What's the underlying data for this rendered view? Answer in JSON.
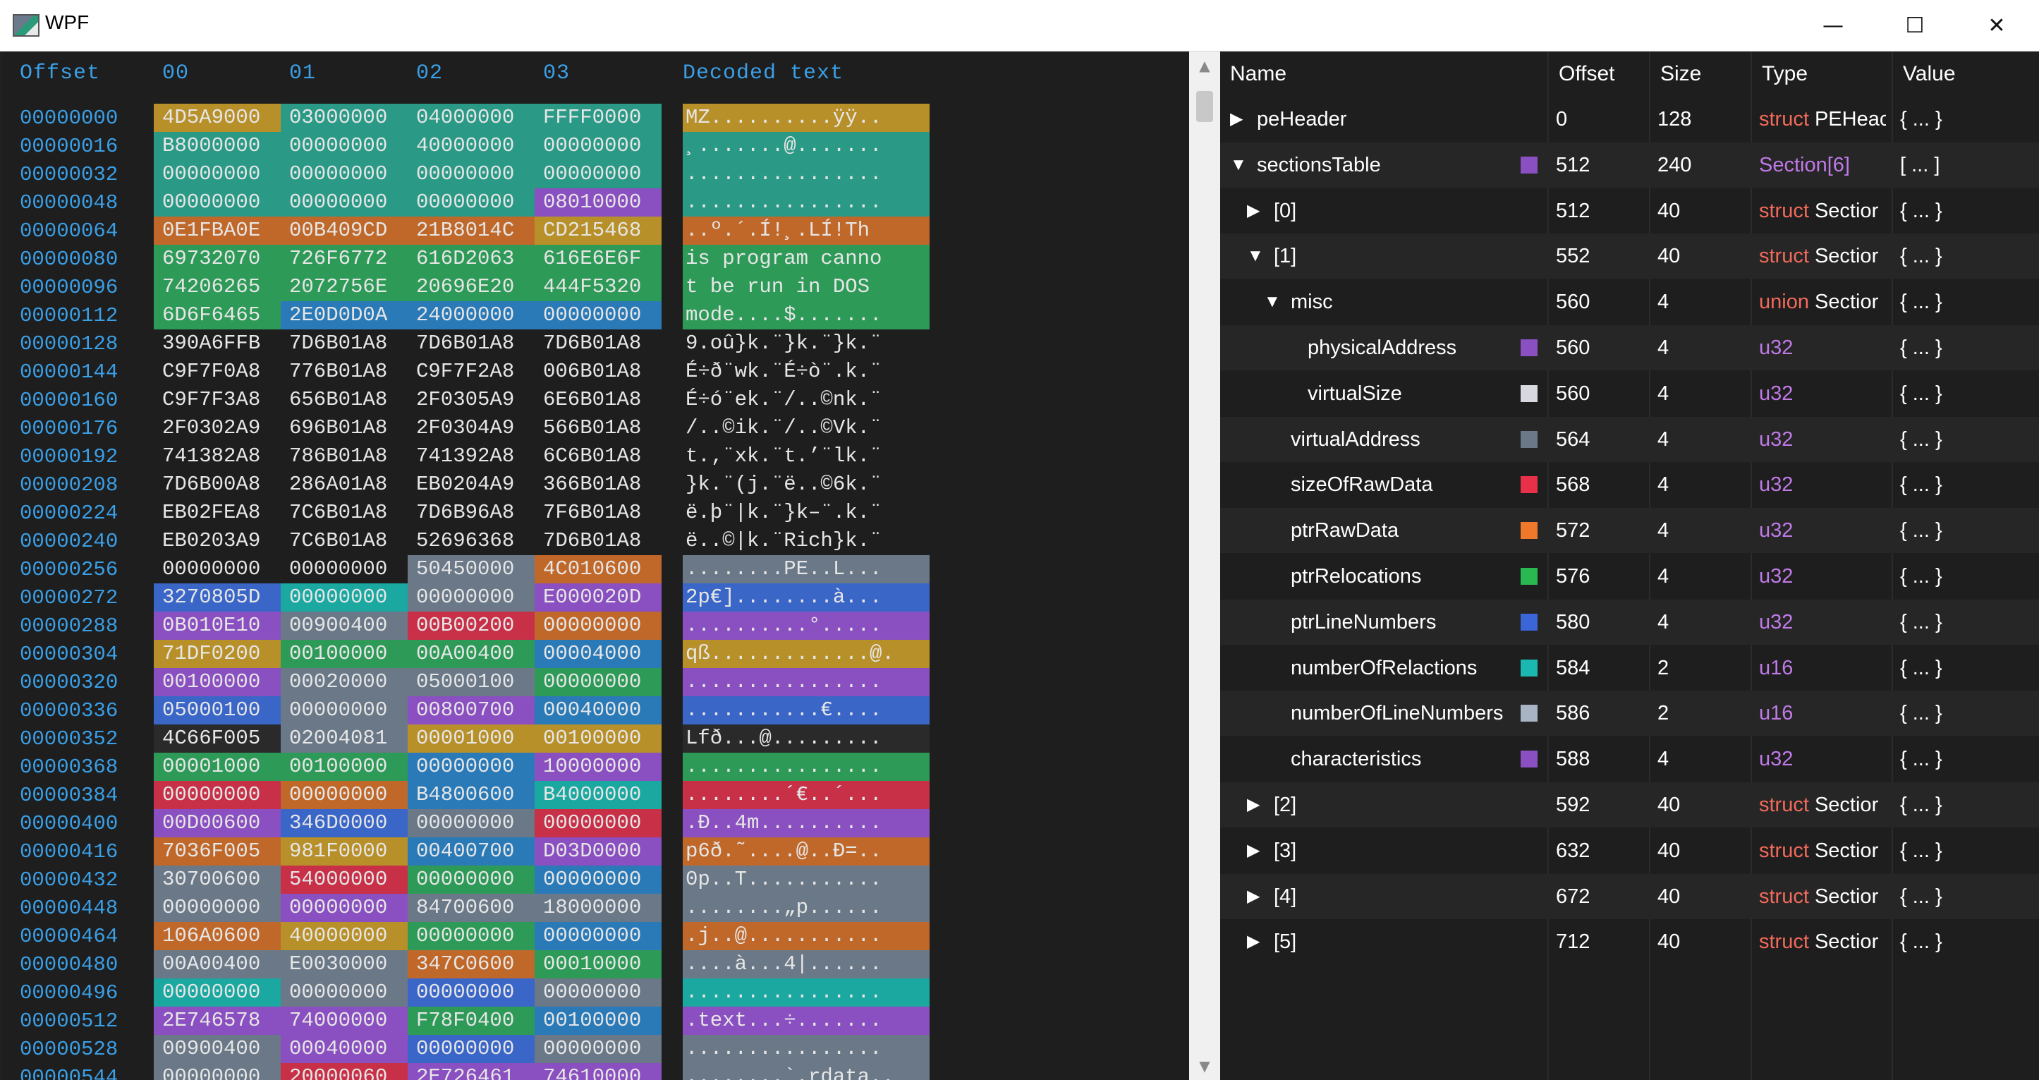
{
  "window": {
    "title": "WPF",
    "minimize": "—",
    "maximize": "☐",
    "close": "✕"
  },
  "hex_headers": {
    "offset": "Offset",
    "c0": "00",
    "c1": "01",
    "c2": "02",
    "c3": "03",
    "decoded": "Decoded text"
  },
  "hex_rows": [
    {
      "offset": "00000000",
      "cells": [
        "4D5A9000",
        "03000000",
        "04000000",
        "FFFF0000"
      ],
      "decoded": "MZ..........ÿÿ..",
      "colors": [
        "#b8902a",
        "#2a9a86",
        "#2a9a86",
        "#2a9a86"
      ]
    },
    {
      "offset": "00000016",
      "cells": [
        "B8000000",
        "00000000",
        "40000000",
        "00000000"
      ],
      "decoded": "¸.......@.......",
      "colors": [
        "#2a9a86",
        "#2a9a86",
        "#2a9a86",
        "#2a9a86"
      ]
    },
    {
      "offset": "00000032",
      "cells": [
        "00000000",
        "00000000",
        "00000000",
        "00000000"
      ],
      "decoded": "................",
      "colors": [
        "#2a9a86",
        "#2a9a86",
        "#2a9a86",
        "#2a9a86"
      ]
    },
    {
      "offset": "00000048",
      "cells": [
        "00000000",
        "00000000",
        "00000000",
        "08010000"
      ],
      "decoded": "................",
      "colors": [
        "#2a9a86",
        "#2a9a86",
        "#2a9a86",
        "#8a4fc0"
      ]
    },
    {
      "offset": "00000064",
      "cells": [
        "0E1FBA0E",
        "00B409CD",
        "21B8014C",
        "CD215468"
      ],
      "decoded": "..º.´.Í!¸.LÍ!Th",
      "colors": [
        "#c0682a",
        "#c0682a",
        "#c0682a",
        "#b8902a"
      ]
    },
    {
      "offset": "00000080",
      "cells": [
        "69732070",
        "726F6772",
        "616D2063",
        "616E6E6F"
      ],
      "decoded": "is program canno",
      "colors": [
        "#2e9a58",
        "#2e9a58",
        "#2e9a58",
        "#2e9a58"
      ]
    },
    {
      "offset": "00000096",
      "cells": [
        "74206265",
        "2072756E",
        "20696E20",
        "444F5320"
      ],
      "decoded": "t be run in DOS ",
      "colors": [
        "#2e9a58",
        "#2e9a58",
        "#2e9a58",
        "#2e9a58"
      ]
    },
    {
      "offset": "00000112",
      "cells": [
        "6D6F6465",
        "2E0D0D0A",
        "24000000",
        "00000000"
      ],
      "decoded": "mode....$.......",
      "colors": [
        "#2e9a58",
        "#2a7ab8",
        "#2a7ab8",
        "#2a7ab8"
      ]
    },
    {
      "offset": "00000128",
      "cells": [
        "390A6FFB",
        "7D6B01A8",
        "7D6B01A8",
        "7D6B01A8"
      ],
      "decoded": "9.oû}k.¨}k.¨}k.¨",
      "colors": [
        "",
        "",
        "",
        ""
      ]
    },
    {
      "offset": "00000144",
      "cells": [
        "C9F7F0A8",
        "776B01A8",
        "C9F7F2A8",
        "006B01A8"
      ],
      "decoded": "É÷ð¨wk.¨É÷ò¨.k.¨",
      "colors": [
        "",
        "",
        "",
        ""
      ]
    },
    {
      "offset": "00000160",
      "cells": [
        "C9F7F3A8",
        "656B01A8",
        "2F0305A9",
        "6E6B01A8"
      ],
      "decoded": "É÷ó¨ek.¨/..©nk.¨",
      "colors": [
        "",
        "",
        "",
        ""
      ]
    },
    {
      "offset": "00000176",
      "cells": [
        "2F0302A9",
        "696B01A8",
        "2F0304A9",
        "566B01A8"
      ],
      "decoded": "/..©ik.¨/..©Vk.¨",
      "colors": [
        "",
        "",
        "",
        ""
      ]
    },
    {
      "offset": "00000192",
      "cells": [
        "741382A8",
        "786B01A8",
        "741392A8",
        "6C6B01A8"
      ],
      "decoded": "t.‚¨xk.¨t.’¨lk.¨",
      "colors": [
        "",
        "",
        "",
        ""
      ]
    },
    {
      "offset": "00000208",
      "cells": [
        "7D6B00A8",
        "286A01A8",
        "EB0204A9",
        "366B01A8"
      ],
      "decoded": "}k.¨(j.¨ë..©6k.¨",
      "colors": [
        "",
        "",
        "",
        ""
      ]
    },
    {
      "offset": "00000224",
      "cells": [
        "EB02FEA8",
        "7C6B01A8",
        "7D6B96A8",
        "7F6B01A8"
      ],
      "decoded": "ë.þ¨|k.¨}k–¨.k.¨",
      "colors": [
        "",
        "",
        "",
        ""
      ]
    },
    {
      "offset": "00000240",
      "cells": [
        "EB0203A9",
        "7C6B01A8",
        "52696368",
        "7D6B01A8"
      ],
      "decoded": "ë..©|k.¨Rich}k.¨",
      "colors": [
        "",
        "",
        "",
        ""
      ]
    },
    {
      "offset": "00000256",
      "cells": [
        "00000000",
        "00000000",
        "50450000",
        "4C010600"
      ],
      "decoded": "........PE..L...",
      "colors": [
        "",
        "",
        "#6a7888",
        "#c0682a"
      ]
    },
    {
      "offset": "00000272",
      "cells": [
        "3270805D",
        "00000000",
        "00000000",
        "E000020D"
      ],
      "decoded": "2p€]........à...",
      "colors": [
        "#3a66c8",
        "#1aa8a0",
        "#6a7888",
        "#8a4fc0"
      ]
    },
    {
      "offset": "00000288",
      "cells": [
        "0B010E10",
        "00900400",
        "00B00200",
        "00000000"
      ],
      "decoded": "..........°.....",
      "colors": [
        "#8a4fc0",
        "#6a7888",
        "#c83048",
        "#c0682a"
      ]
    },
    {
      "offset": "00000304",
      "cells": [
        "71DF0200",
        "00100000",
        "00A00400",
        "00004000"
      ],
      "decoded": "qß.............@.",
      "colors": [
        "#b8902a",
        "#2e9a58",
        "#2e9a58",
        "#2a7ab8"
      ]
    },
    {
      "offset": "00000320",
      "cells": [
        "00100000",
        "00020000",
        "05000100",
        "00000000"
      ],
      "decoded": "................",
      "colors": [
        "#8a4fc0",
        "#6a7888",
        "#6a7888",
        "#2e9a58"
      ]
    },
    {
      "offset": "00000336",
      "cells": [
        "05000100",
        "00000000",
        "00800700",
        "00040000"
      ],
      "decoded": "...........€....",
      "colors": [
        "#3a66c8",
        "#6a7888",
        "#8a4fc0",
        "#2a7ab8"
      ]
    },
    {
      "offset": "00000352",
      "cells": [
        "4C66F005",
        "02004081",
        "00001000",
        "00100000"
      ],
      "decoded": "Lfð...@.........",
      "colors": [
        "#2a2a2a",
        "#6a7888",
        "#b8902a",
        "#b8902a"
      ]
    },
    {
      "offset": "00000368",
      "cells": [
        "00001000",
        "00100000",
        "00000000",
        "10000000"
      ],
      "decoded": "................",
      "colors": [
        "#2e9a58",
        "#2e9a58",
        "#2a7ab8",
        "#8a4fc0"
      ]
    },
    {
      "offset": "00000384",
      "cells": [
        "00000000",
        "00000000",
        "B4800600",
        "B4000000"
      ],
      "decoded": "........´€..´...",
      "colors": [
        "#c83048",
        "#c0682a",
        "#2a7ab8",
        "#1aa8a0"
      ]
    },
    {
      "offset": "00000400",
      "cells": [
        "00D00600",
        "346D0000",
        "00000000",
        "00000000"
      ],
      "decoded": ".Ð..4m..........",
      "colors": [
        "#8a4fc0",
        "#3a66c8",
        "#6a7888",
        "#c83048"
      ]
    },
    {
      "offset": "00000416",
      "cells": [
        "7036F005",
        "981F0000",
        "00400700",
        "D03D0000"
      ],
      "decoded": "p6ð.˜....@..Ð=..",
      "colors": [
        "#c0682a",
        "#b8902a",
        "#2a7ab8",
        "#8a4fc0"
      ]
    },
    {
      "offset": "00000432",
      "cells": [
        "30700600",
        "54000000",
        "00000000",
        "00000000"
      ],
      "decoded": "0p..T...........",
      "colors": [
        "#6a7888",
        "#c83048",
        "#2e9a58",
        "#2a7ab8"
      ]
    },
    {
      "offset": "00000448",
      "cells": [
        "00000000",
        "00000000",
        "84700600",
        "18000000"
      ],
      "decoded": "........„p......",
      "colors": [
        "#6a7888",
        "#8a4fc0",
        "#6a7888",
        "#6a7888"
      ]
    },
    {
      "offset": "00000464",
      "cells": [
        "106A0600",
        "40000000",
        "00000000",
        "00000000"
      ],
      "decoded": ".j..@...........",
      "colors": [
        "#c0682a",
        "#b8902a",
        "#2e9a58",
        "#2a7ab8"
      ]
    },
    {
      "offset": "00000480",
      "cells": [
        "00A00400",
        "E0030000",
        "347C0600",
        "00010000"
      ],
      "decoded": "....à...4|......",
      "colors": [
        "#6a7888",
        "#6a7888",
        "#c0682a",
        "#2e9a58"
      ]
    },
    {
      "offset": "00000496",
      "cells": [
        "00000000",
        "00000000",
        "00000000",
        "00000000"
      ],
      "decoded": "................",
      "colors": [
        "#1aa8a0",
        "#6a7888",
        "#3a66c8",
        "#6a7888"
      ]
    },
    {
      "offset": "00000512",
      "cells": [
        "2E746578",
        "74000000",
        "F78F0400",
        "00100000"
      ],
      "decoded": ".text...÷.......",
      "colors": [
        "#8a4fc0",
        "#8a4fc0",
        "#2e9a58",
        "#2a7ab8"
      ]
    },
    {
      "offset": "00000528",
      "cells": [
        "00900400",
        "00040000",
        "00000000",
        "00000000"
      ],
      "decoded": "................",
      "colors": [
        "#6a7888",
        "#8a4fc0",
        "#3a66c8",
        "#6a7888"
      ]
    },
    {
      "offset": "00000544",
      "cells": [
        "00000000",
        "20000060",
        "2E726461",
        "74610000"
      ],
      "decoded": "........`.rdata..",
      "colors": [
        "#6a7888",
        "#c83048",
        "#8a4fc0",
        "#8a4fc0"
      ]
    }
  ],
  "tree_headers": {
    "name": "Name",
    "offset": "Offset",
    "size": "Size",
    "type": "Type",
    "value": "Value"
  },
  "tree_rows": [
    {
      "toggle": "▶",
      "indent": 0,
      "name": "peHeader",
      "swatch": "",
      "offset": "0",
      "size": "128",
      "kw": "struct",
      "type": " PEHeac",
      "typestyle": "kw",
      "value": "{ ... }"
    },
    {
      "toggle": "▼",
      "indent": 0,
      "name": "sectionsTable",
      "swatch": "#8a4fc0",
      "offset": "512",
      "size": "240",
      "kw": "",
      "type": "Section[6]",
      "typestyle": "sec",
      "value": "[ ... ]"
    },
    {
      "toggle": "▶",
      "indent": 1,
      "name": "[0]",
      "swatch": "",
      "offset": "512",
      "size": "40",
      "kw": "struct",
      "type": " Sectior",
      "typestyle": "kw",
      "value": "{ ... }"
    },
    {
      "toggle": "▼",
      "indent": 1,
      "name": "[1]",
      "swatch": "",
      "offset": "552",
      "size": "40",
      "kw": "struct",
      "type": " Sectior",
      "typestyle": "kw",
      "value": "{ ... }"
    },
    {
      "toggle": "▼",
      "indent": 2,
      "name": "misc",
      "swatch": "",
      "offset": "560",
      "size": "4",
      "kw": "union",
      "type": " Sectior",
      "typestyle": "kw",
      "value": "{ ... }"
    },
    {
      "toggle": "",
      "indent": 3,
      "name": "physicalAddress",
      "swatch": "#8a4fc0",
      "offset": "560",
      "size": "4",
      "kw": "",
      "type": "u32",
      "typestyle": "u",
      "value": "{ ... }"
    },
    {
      "toggle": "",
      "indent": 3,
      "name": "virtualSize",
      "swatch": "#d8d8e0",
      "offset": "560",
      "size": "4",
      "kw": "",
      "type": "u32",
      "typestyle": "u",
      "value": "{ ... }"
    },
    {
      "toggle": "",
      "indent": 2,
      "name": "virtualAddress",
      "swatch": "#6a7888",
      "offset": "564",
      "size": "4",
      "kw": "",
      "type": "u32",
      "typestyle": "u",
      "value": "{ ... }"
    },
    {
      "toggle": "",
      "indent": 2,
      "name": "sizeOfRawData",
      "swatch": "#e83048",
      "offset": "568",
      "size": "4",
      "kw": "",
      "type": "u32",
      "typestyle": "u",
      "value": "{ ... }"
    },
    {
      "toggle": "",
      "indent": 2,
      "name": "ptrRawData",
      "swatch": "#f0782a",
      "offset": "572",
      "size": "4",
      "kw": "",
      "type": "u32",
      "typestyle": "u",
      "value": "{ ... }"
    },
    {
      "toggle": "",
      "indent": 2,
      "name": "ptrRelocations",
      "swatch": "#2ab850",
      "offset": "576",
      "size": "4",
      "kw": "",
      "type": "u32",
      "typestyle": "u",
      "value": "{ ... }"
    },
    {
      "toggle": "",
      "indent": 2,
      "name": "ptrLineNumbers",
      "swatch": "#3a66d8",
      "offset": "580",
      "size": "4",
      "kw": "",
      "type": "u32",
      "typestyle": "u",
      "value": "{ ... }"
    },
    {
      "toggle": "",
      "indent": 2,
      "name": "numberOfRelactions",
      "swatch": "#1ab8b0",
      "offset": "584",
      "size": "2",
      "kw": "",
      "type": "u16",
      "typestyle": "u",
      "value": "{ ... }"
    },
    {
      "toggle": "",
      "indent": 2,
      "name": "numberOfLineNumbers",
      "swatch": "#a8b4c4",
      "offset": "586",
      "size": "2",
      "kw": "",
      "type": "u16",
      "typestyle": "u",
      "value": "{ ... }"
    },
    {
      "toggle": "",
      "indent": 2,
      "name": "characteristics",
      "swatch": "#8a4fc0",
      "offset": "588",
      "size": "4",
      "kw": "",
      "type": "u32",
      "typestyle": "u",
      "value": "{ ... }"
    },
    {
      "toggle": "▶",
      "indent": 1,
      "name": "[2]",
      "swatch": "",
      "offset": "592",
      "size": "40",
      "kw": "struct",
      "type": " Sectior",
      "typestyle": "kw",
      "value": "{ ... }"
    },
    {
      "toggle": "▶",
      "indent": 1,
      "name": "[3]",
      "swatch": "",
      "offset": "632",
      "size": "40",
      "kw": "struct",
      "type": " Sectior",
      "typestyle": "kw",
      "value": "{ ... }"
    },
    {
      "toggle": "▶",
      "indent": 1,
      "name": "[4]",
      "swatch": "",
      "offset": "672",
      "size": "40",
      "kw": "struct",
      "type": " Sectior",
      "typestyle": "kw",
      "value": "{ ... }"
    },
    {
      "toggle": "▶",
      "indent": 1,
      "name": "[5]",
      "swatch": "",
      "offset": "712",
      "size": "40",
      "kw": "struct",
      "type": " Sectior",
      "typestyle": "kw",
      "value": "{ ... }"
    }
  ]
}
